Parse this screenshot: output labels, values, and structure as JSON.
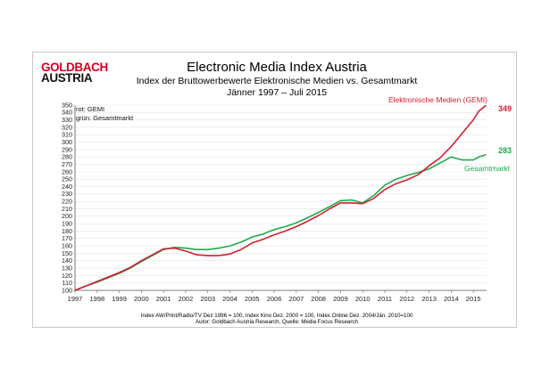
{
  "logo": {
    "line1": "GOLDBACH",
    "line2": "AUSTRIA"
  },
  "header": {
    "title": "Electronic Media Index Austria",
    "subtitle": "Index der Bruttowerbewerte Elektronische Medien vs. Gesamtmarkt",
    "daterange": "Jänner 1997 –  Juli 2015"
  },
  "footnotes": {
    "line1": "Index AW/Print/Radio/TV Dez 1996 = 100, Index Kino Dez. 2000 = 100, Index Online Dez. 2004/Jän. 2010=100",
    "line2": "Autor: Goldbach Austria Research, Quelle: Media Focus Research"
  },
  "colors": {
    "gemi": "#d2202f",
    "gesamt": "#1faa4b",
    "logo_red": "#d1001f"
  },
  "chart_data": {
    "type": "line",
    "title": "Electronic Media Index Austria",
    "legend": [
      "rot: GEMI",
      "grün: Gesamtmarkt"
    ],
    "ylim": [
      100,
      350
    ],
    "xlim": [
      1997,
      2015.6
    ],
    "yticks": [
      100,
      110,
      120,
      130,
      140,
      150,
      160,
      170,
      180,
      190,
      200,
      210,
      220,
      230,
      240,
      250,
      260,
      270,
      280,
      290,
      300,
      310,
      320,
      330,
      340,
      350
    ],
    "xticks": [
      "1997",
      "1998",
      "1999",
      "2000",
      "2001",
      "2002",
      "2003",
      "2004",
      "2005",
      "2006",
      "2007",
      "2008",
      "2009",
      "2010",
      "2011",
      "2012",
      "2013",
      "2014",
      "2015"
    ],
    "grid": true,
    "series": [
      {
        "name": "Elektronische Medien (GEMI)",
        "color": "#d2202f",
        "end_label": "349",
        "x": [
          1997,
          1997.5,
          1998,
          1998.5,
          1999,
          1999.5,
          2000,
          2000.5,
          2001,
          2001.5,
          2002,
          2002.5,
          2003,
          2003.5,
          2004,
          2004.5,
          2005,
          2005.5,
          2006,
          2006.5,
          2007,
          2007.5,
          2008,
          2008.5,
          2009,
          2009.5,
          2010,
          2010.5,
          2011,
          2011.5,
          2012,
          2012.5,
          2013,
          2013.5,
          2014,
          2014.5,
          2015,
          2015.25,
          2015.55
        ],
        "values": [
          100,
          106,
          112,
          118,
          124,
          131,
          140,
          148,
          156,
          157,
          153,
          148,
          147,
          147,
          149,
          155,
          164,
          169,
          175,
          180,
          186,
          193,
          201,
          210,
          218,
          218,
          217,
          224,
          236,
          244,
          249,
          256,
          268,
          279,
          294,
          312,
          330,
          342,
          349
        ]
      },
      {
        "name": "Gesamtmarkt",
        "color": "#1faa4b",
        "end_label": "283",
        "x": [
          1997,
          1997.5,
          1998,
          1998.5,
          1999,
          1999.5,
          2000,
          2000.5,
          2001,
          2001.5,
          2002,
          2002.5,
          2003,
          2003.5,
          2004,
          2004.5,
          2005,
          2005.5,
          2006,
          2006.5,
          2007,
          2007.5,
          2008,
          2008.5,
          2009,
          2009.5,
          2010,
          2010.5,
          2011,
          2011.5,
          2012,
          2012.5,
          2013,
          2013.5,
          2014,
          2014.5,
          2015,
          2015.25,
          2015.55
        ],
        "values": [
          100,
          106,
          111,
          117,
          123,
          130,
          139,
          147,
          155,
          158,
          157,
          155,
          155,
          157,
          160,
          165,
          172,
          176,
          182,
          186,
          191,
          198,
          205,
          213,
          221,
          222,
          218,
          228,
          242,
          250,
          255,
          259,
          264,
          272,
          280,
          276,
          276,
          280,
          283
        ]
      }
    ]
  }
}
